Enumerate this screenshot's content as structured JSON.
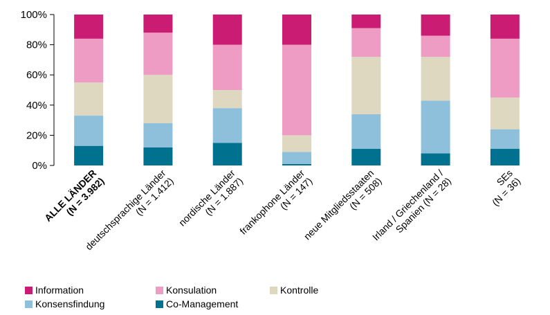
{
  "chart_data": {
    "type": "stacked-bar",
    "ylim": [
      0,
      100
    ],
    "yticks": [
      "0%",
      "20%",
      "40%",
      "60%",
      "80%",
      "100%"
    ],
    "categories": [
      {
        "line1": "ALLE LÄNDER",
        "line2": "(N = 3.982)",
        "bold": true
      },
      {
        "line1": "deutschsprachige Länder",
        "line2": "(N = 1.412)",
        "bold": false
      },
      {
        "line1": "nordische Länder",
        "line2": "(N = 1.887)",
        "bold": false
      },
      {
        "line1": "frankophone Länder",
        "line2": "(N = 147)",
        "bold": false
      },
      {
        "line1": "neue Mitgliedsstaaten",
        "line2": "(N = 508)",
        "bold": false
      },
      {
        "line1": "Irland / Griechenland /",
        "line2": "Spanien (N = 28)",
        "bold": false
      },
      {
        "line1": "SEs",
        "line2": "(N = 36)",
        "bold": false
      }
    ],
    "series": [
      {
        "name": "Co-Management",
        "color": "#00728f",
        "values": [
          13,
          12,
          15,
          1,
          11,
          8,
          11
        ]
      },
      {
        "name": "Konsensfindung",
        "color": "#8ec0dc",
        "values": [
          20,
          16,
          23,
          8,
          23,
          35,
          13
        ]
      },
      {
        "name": "Kontrolle",
        "color": "#ddd8bf",
        "values": [
          22,
          32,
          12,
          11,
          38,
          29,
          21
        ]
      },
      {
        "name": "Konsulation",
        "color": "#ee9cc3",
        "values": [
          29,
          28,
          30,
          60,
          19,
          14,
          39
        ]
      },
      {
        "name": "Information",
        "color": "#c91c72",
        "values": [
          16,
          12,
          20,
          20,
          9,
          14,
          16
        ]
      }
    ],
    "legend_order": [
      "Information",
      "Konsulation",
      "Kontrolle",
      "Konsensfindung",
      "Co-Management"
    ],
    "legend_placement": "bottom",
    "grid": false
  }
}
